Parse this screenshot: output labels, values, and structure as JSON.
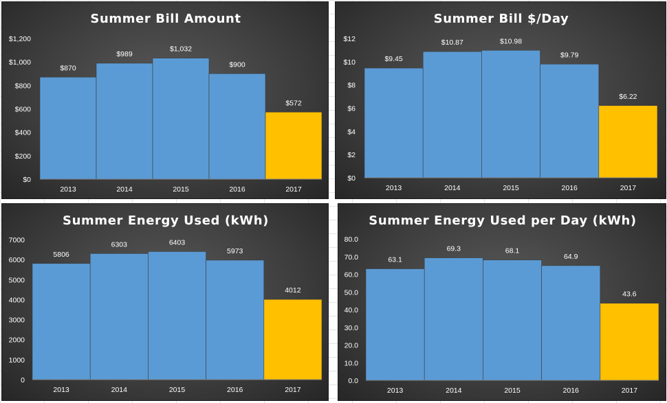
{
  "colors": {
    "bar": "#5b9bd5",
    "highlight": "#ffc000",
    "text": "#ffffff",
    "gridline": "#7a7a7a"
  },
  "chart_data": [
    {
      "type": "bar",
      "title": "Summer Bill Amount",
      "categories": [
        "2013",
        "2014",
        "2015",
        "2016",
        "2017"
      ],
      "values": [
        870,
        989,
        1032,
        900,
        572
      ],
      "data_labels": [
        "$870",
        "$989",
        "$1,032",
        "$900",
        "$572"
      ],
      "highlight_index": 4,
      "ylim": [
        0,
        1200
      ],
      "y_ticks": [
        0,
        200,
        400,
        600,
        800,
        1000,
        1200
      ],
      "y_tick_labels": [
        "$0",
        "$200",
        "$400",
        "$600",
        "$800",
        "$1,000",
        "$1,200"
      ],
      "xlabel": "",
      "ylabel": "",
      "grid": false
    },
    {
      "type": "bar",
      "title": "Summer Bill $/Day",
      "categories": [
        "2013",
        "2014",
        "2015",
        "2016",
        "2017"
      ],
      "values": [
        9.45,
        10.87,
        10.98,
        9.79,
        6.22
      ],
      "data_labels": [
        "$9.45",
        "$10.87",
        "$10.98",
        "$9.79",
        "$6.22"
      ],
      "highlight_index": 4,
      "ylim": [
        0,
        12
      ],
      "y_ticks": [
        0,
        2,
        4,
        6,
        8,
        10,
        12
      ],
      "y_tick_labels": [
        "$0",
        "$2",
        "$4",
        "$6",
        "$8",
        "$10",
        "$12"
      ],
      "xlabel": "",
      "ylabel": "",
      "grid": false
    },
    {
      "type": "bar",
      "title": "Summer Energy Used (kWh)",
      "categories": [
        "2013",
        "2014",
        "2015",
        "2016",
        "2017"
      ],
      "values": [
        5806,
        6303,
        6403,
        5973,
        4012
      ],
      "data_labels": [
        "5806",
        "6303",
        "6403",
        "5973",
        "4012"
      ],
      "highlight_index": 4,
      "ylim": [
        0,
        7000
      ],
      "y_ticks": [
        0,
        1000,
        2000,
        3000,
        4000,
        5000,
        6000,
        7000
      ],
      "y_tick_labels": [
        "0",
        "1000",
        "2000",
        "3000",
        "4000",
        "5000",
        "6000",
        "7000"
      ],
      "xlabel": "",
      "ylabel": "",
      "grid": false
    },
    {
      "type": "bar",
      "title": "Summer Energy Used per Day (kWh)",
      "categories": [
        "2013",
        "2014",
        "2015",
        "2016",
        "2017"
      ],
      "values": [
        63.1,
        69.3,
        68.1,
        64.9,
        43.6
      ],
      "data_labels": [
        "63.1",
        "69.3",
        "68.1",
        "64.9",
        "43.6"
      ],
      "highlight_index": 4,
      "ylim": [
        0,
        80
      ],
      "y_ticks": [
        0,
        10,
        20,
        30,
        40,
        50,
        60,
        70,
        80
      ],
      "y_tick_labels": [
        "0.0",
        "10.0",
        "20.0",
        "30.0",
        "40.0",
        "50.0",
        "60.0",
        "70.0",
        "80.0"
      ],
      "xlabel": "",
      "ylabel": "",
      "grid": false
    }
  ]
}
